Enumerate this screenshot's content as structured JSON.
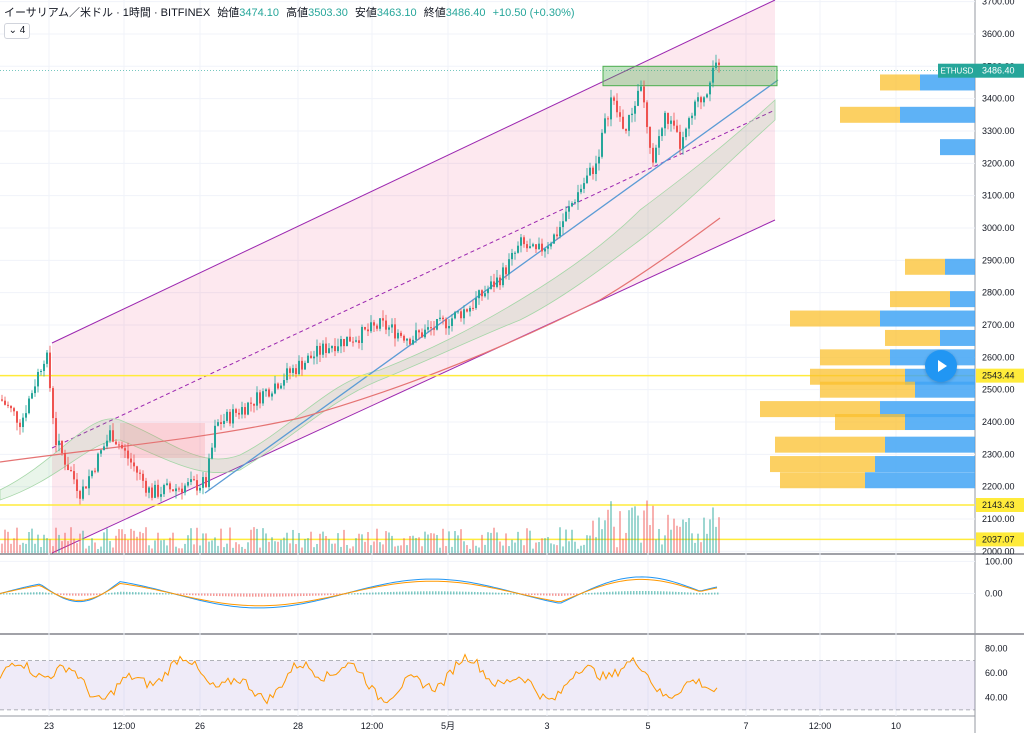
{
  "legend": {
    "symbol": "イーサリアム／米ドル · 1時間 · BITFINEX",
    "open_label": "始値",
    "open": "3474.10",
    "high_label": "高値",
    "high": "3503.30",
    "low_label": "安値",
    "low": "3463.10",
    "close_label": "終値",
    "close": "3486.40",
    "change": "+10.50 (+0.30%)",
    "collapsed_count": "4"
  },
  "colors": {
    "up": "#26a69a",
    "down": "#ef5350",
    "channel": "#9c27b0",
    "highlight": "#ffeb3b",
    "trend": "#5b9bd5",
    "ma": "#e57373",
    "vp_up": "#42a5f5",
    "vp_down": "#fbc02d"
  },
  "chart_data": [
    {
      "type": "candlestick",
      "title": "",
      "price_axis_ticks": [
        "3700.00",
        "3600.00",
        "3500.00",
        "3400.00",
        "3300.00",
        "3200.00",
        "3100.00",
        "3000.00",
        "2900.00",
        "2800.00",
        "2700.00",
        "2600.00",
        "2500.00",
        "2400.00",
        "2300.00",
        "2200.00",
        "2100.00",
        "2000.00"
      ],
      "ylim": [
        1995,
        3705
      ],
      "time_ticks": [
        "23",
        "12:00",
        "26",
        "28",
        "12:00",
        "5月",
        "3",
        "5",
        "7",
        "12:00",
        "10"
      ],
      "series_anchors_price": [
        [
          0,
          2470
        ],
        [
          20,
          2400
        ],
        [
          45,
          2620
        ],
        [
          55,
          2340
        ],
        [
          80,
          2180
        ],
        [
          110,
          2370
        ],
        [
          150,
          2180
        ],
        [
          180,
          2200
        ],
        [
          205,
          2210
        ],
        [
          215,
          2390
        ],
        [
          250,
          2460
        ],
        [
          300,
          2580
        ],
        [
          330,
          2640
        ],
        [
          360,
          2670
        ],
        [
          380,
          2700
        ],
        [
          410,
          2660
        ],
        [
          440,
          2700
        ],
        [
          470,
          2760
        ],
        [
          500,
          2850
        ],
        [
          520,
          2950
        ],
        [
          535,
          2920
        ],
        [
          555,
          2980
        ],
        [
          575,
          3100
        ],
        [
          595,
          3200
        ],
        [
          610,
          3400
        ],
        [
          625,
          3300
        ],
        [
          640,
          3450
        ],
        [
          650,
          3200
        ],
        [
          665,
          3350
        ],
        [
          680,
          3250
        ],
        [
          695,
          3380
        ],
        [
          705,
          3420
        ],
        [
          712,
          3510
        ],
        [
          718,
          3480
        ]
      ],
      "price_labels": [
        {
          "text": "ETHUSD",
          "value": "3486.40",
          "price": 3486.4
        },
        {
          "text": "",
          "value": "2543.44",
          "price": 2543.44
        },
        {
          "text": "",
          "value": "2143.43",
          "price": 2143.43
        },
        {
          "text": "",
          "value": "2037.07",
          "price": 2037.07
        }
      ],
      "highlight_range": [
        3440,
        3500
      ],
      "volume_profile": [
        {
          "price": 3450,
          "up": 40,
          "down": 55
        },
        {
          "price": 3350,
          "up": 60,
          "down": 75
        },
        {
          "price": 3250,
          "up": 0,
          "down": 35
        },
        {
          "price": 2880,
          "up": 40,
          "down": 30
        },
        {
          "price": 2780,
          "up": 60,
          "down": 25
        },
        {
          "price": 2720,
          "up": 90,
          "down": 95
        },
        {
          "price": 2660,
          "up": 55,
          "down": 35
        },
        {
          "price": 2600,
          "up": 70,
          "down": 85
        },
        {
          "price": 2540,
          "up": 95,
          "down": 70
        },
        {
          "price": 2500,
          "up": 95,
          "down": 60
        },
        {
          "price": 2440,
          "up": 120,
          "down": 95
        },
        {
          "price": 2400,
          "up": 70,
          "down": 70
        },
        {
          "price": 2330,
          "up": 110,
          "down": 90
        },
        {
          "price": 2270,
          "up": 105,
          "down": 100
        },
        {
          "price": 2220,
          "up": 85,
          "down": 110
        }
      ]
    },
    {
      "type": "line",
      "title": "",
      "ticks": [
        "100.00",
        "0.00"
      ],
      "ylim": [
        -120,
        120
      ]
    },
    {
      "type": "line",
      "title": "",
      "ticks": [
        "80.00",
        "60.00",
        "40.00"
      ],
      "ylim": [
        25,
        90
      ]
    }
  ]
}
